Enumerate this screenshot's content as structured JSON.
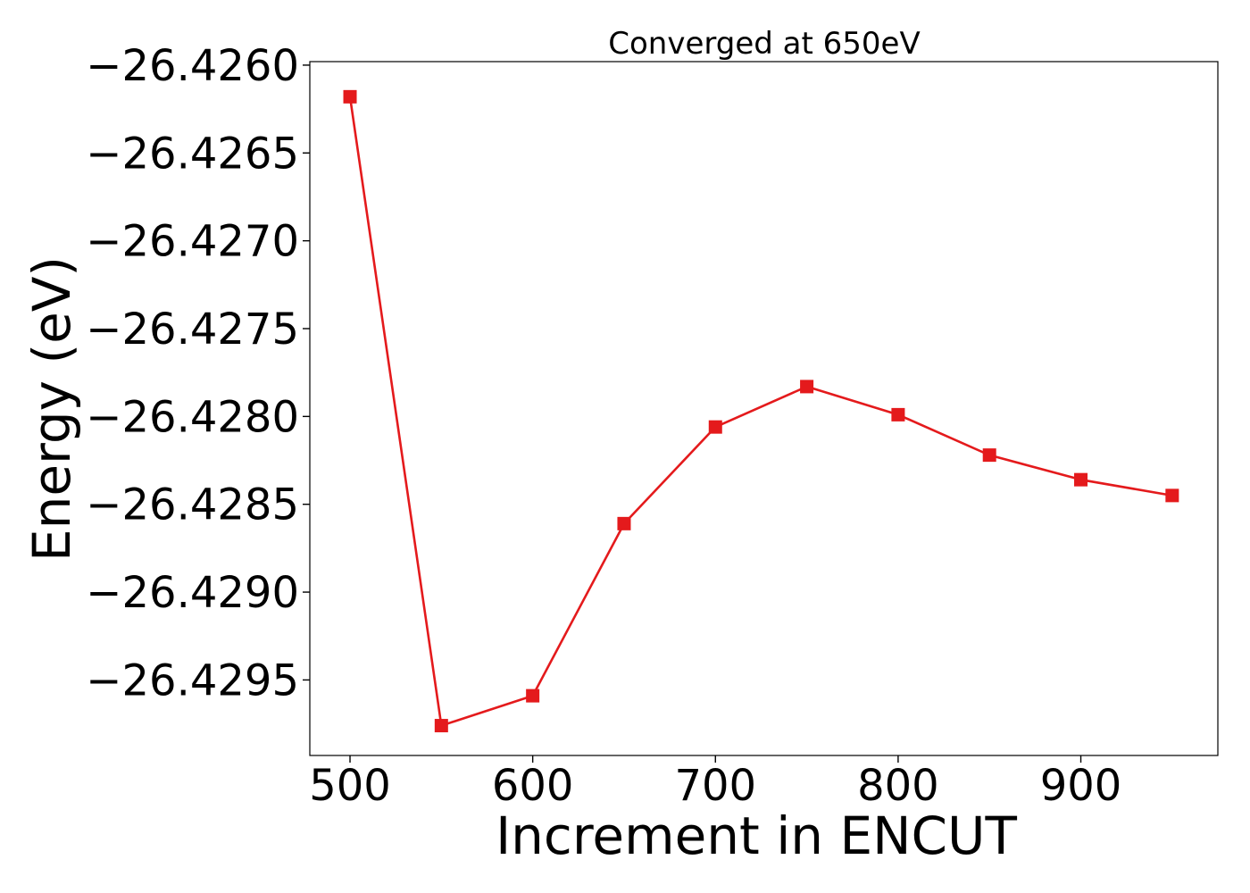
{
  "chart_data": {
    "type": "line",
    "title": "Converged at 650eV",
    "xlabel": "Increment in ENCUT",
    "ylabel": "Energy (eV)",
    "x": [
      500,
      550,
      600,
      650,
      700,
      750,
      800,
      850,
      900,
      950
    ],
    "series": [
      {
        "values": [
          -26.42618,
          -26.42976,
          -26.42959,
          -26.42861,
          -26.42806,
          -26.42783,
          -26.42799,
          -26.42822,
          -26.42836,
          -26.42845
        ],
        "color": "#e41a1c",
        "marker": "square"
      }
    ],
    "xlim": [
      478,
      975
    ],
    "ylim": [
      -26.42993,
      -26.42598
    ],
    "xticks": [
      500,
      600,
      700,
      800,
      900
    ],
    "xtick_labels": [
      "500",
      "600",
      "700",
      "800",
      "900"
    ],
    "yticks": [
      -26.426,
      -26.4265,
      -26.427,
      -26.4275,
      -26.428,
      -26.4285,
      -26.429,
      -26.4295
    ],
    "ytick_labels": [
      "−26.4260",
      "−26.4265",
      "−26.4270",
      "−26.4275",
      "−26.4280",
      "−26.4285",
      "−26.4290",
      "−26.4295"
    ],
    "grid": false,
    "legend": "none"
  }
}
